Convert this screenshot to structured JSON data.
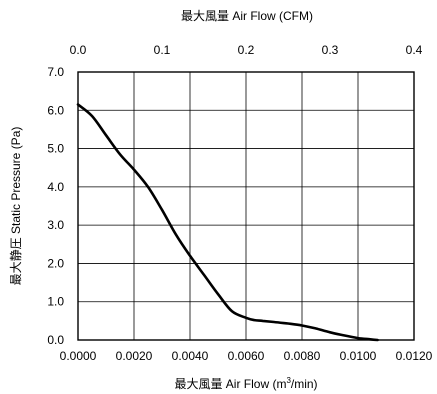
{
  "chart_data": {
    "type": "line",
    "top_axis_title": "最大風量  Air Flow (CFM)",
    "xlabel": "最大風量  Air Flow  (m³/min)",
    "xlabel_parts": {
      "prefix": "最大風量  Air Flow  (m",
      "sup": "3",
      "suffix": "/min)"
    },
    "ylabel": "最大静圧  Static Pressure (Pa)",
    "xlim": [
      0.0,
      0.012
    ],
    "ylim": [
      0.0,
      7.0
    ],
    "x_ticks": [
      "0.0000",
      "0.0020",
      "0.0040",
      "0.0060",
      "0.0080",
      "0.0100",
      "0.0120"
    ],
    "x_tick_values": [
      0.0,
      0.002,
      0.004,
      0.006,
      0.008,
      0.01,
      0.012
    ],
    "top_xlim": [
      0.0,
      0.4
    ],
    "top_ticks": [
      "0.0",
      "0.1",
      "0.2",
      "0.3",
      "0.4"
    ],
    "top_tick_values": [
      0.0,
      0.1,
      0.2,
      0.3,
      0.4
    ],
    "y_ticks": [
      "0.0",
      "1.0",
      "2.0",
      "3.0",
      "4.0",
      "5.0",
      "6.0",
      "7.0"
    ],
    "y_tick_values": [
      0,
      1,
      2,
      3,
      4,
      5,
      6,
      7
    ],
    "grid": true,
    "series": [
      {
        "color": "#000000",
        "x": [
          0.0,
          0.0005,
          0.001,
          0.0015,
          0.002,
          0.0025,
          0.003,
          0.0035,
          0.004,
          0.0045,
          0.005,
          0.0055,
          0.006,
          0.0063,
          0.0066,
          0.007,
          0.0075,
          0.008,
          0.0085,
          0.009,
          0.0095,
          0.01,
          0.0104,
          0.0107
        ],
        "y": [
          6.15,
          5.85,
          5.35,
          4.85,
          4.45,
          4.0,
          3.4,
          2.75,
          2.2,
          1.7,
          1.2,
          0.75,
          0.58,
          0.52,
          0.5,
          0.47,
          0.43,
          0.38,
          0.3,
          0.2,
          0.12,
          0.05,
          0.02,
          0.0
        ]
      }
    ]
  }
}
